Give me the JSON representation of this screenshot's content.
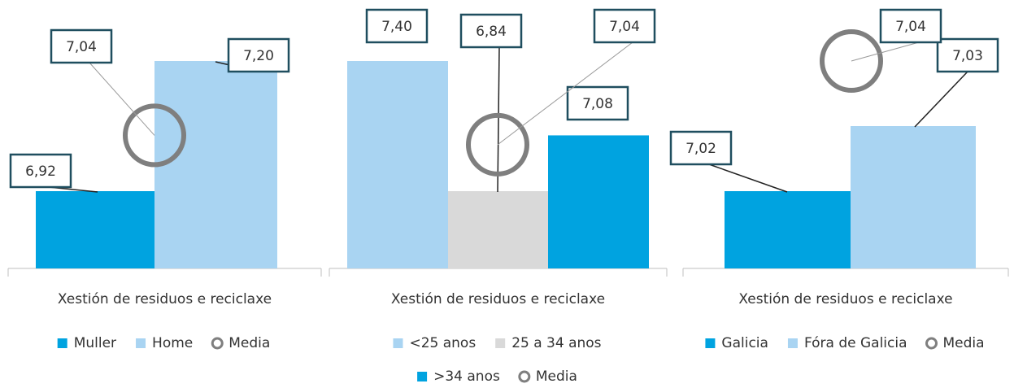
{
  "chart_data": [
    {
      "type": "bar",
      "categories": [
        "Xestión de residuos e reciclaxe"
      ],
      "series": [
        {
          "name": "Muller",
          "color": "#00a3e0",
          "values": [
            6.92
          ],
          "value_labels": [
            "6,92"
          ]
        },
        {
          "name": "Home",
          "color": "#a9d4f2",
          "values": [
            7.2
          ],
          "value_labels": [
            "7,20"
          ]
        },
        {
          "name": "Media",
          "type": "circle",
          "color": "#7f7f7f",
          "values": [
            7.04
          ],
          "value_labels": [
            "7,04"
          ]
        }
      ]
    },
    {
      "type": "bar",
      "categories": [
        "Xestión de residuos e reciclaxe"
      ],
      "series": [
        {
          "name": "<25 anos",
          "color": "#a9d4f2",
          "values": [
            7.4
          ],
          "value_labels": [
            "7,40"
          ]
        },
        {
          "name": "25 a 34 anos",
          "color": "#d9d9d9",
          "values": [
            6.84
          ],
          "value_labels": [
            "6,84"
          ]
        },
        {
          "name": ">34 anos",
          "color": "#00a3e0",
          "values": [
            7.08
          ],
          "value_labels": [
            "7,08"
          ]
        },
        {
          "name": "Media",
          "type": "circle",
          "color": "#7f7f7f",
          "values": [
            7.04
          ],
          "value_labels": [
            "7,04"
          ]
        }
      ]
    },
    {
      "type": "bar",
      "categories": [
        "Xestión de residuos e reciclaxe"
      ],
      "series": [
        {
          "name": "Galicia",
          "color": "#00a3e0",
          "values": [
            7.02
          ],
          "value_labels": [
            "7,02"
          ]
        },
        {
          "name": "Fóra de Galicia",
          "color": "#a9d4f2",
          "values": [
            7.03
          ],
          "value_labels": [
            "7,03"
          ]
        },
        {
          "name": "Media",
          "type": "circle",
          "color": "#7f7f7f",
          "values": [
            7.04
          ],
          "value_labels": [
            "7,04"
          ]
        }
      ]
    }
  ]
}
